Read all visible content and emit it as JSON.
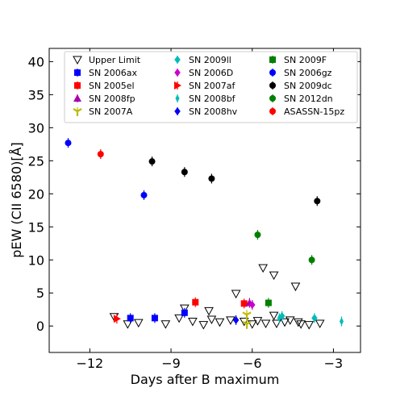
{
  "chart_data": {
    "type": "scatter",
    "xlabel": "Days after B maximum",
    "ylabel": "pEW (CII 6580)[Å]",
    "xlim": [
      -13.5,
      -2
    ],
    "ylim": [
      -4,
      42
    ],
    "xticks": [
      -12,
      -9,
      -6,
      -3
    ],
    "yticks": [
      0,
      5,
      10,
      15,
      20,
      25,
      30,
      35,
      40
    ],
    "grid": false,
    "legend_placement": "top-right",
    "series": [
      {
        "name": "Upper Limit",
        "color": "#000000",
        "marker": "triangle-down-open",
        "points": [
          [
            -11.1,
            1.4
          ],
          [
            -10.6,
            0.3
          ],
          [
            -10.2,
            0.5
          ],
          [
            -9.2,
            0.3
          ],
          [
            -8.7,
            1.2
          ],
          [
            -8.5,
            2.7
          ],
          [
            -8.2,
            0.7
          ],
          [
            -7.8,
            0.2
          ],
          [
            -7.6,
            2.3
          ],
          [
            -7.5,
            1.0
          ],
          [
            -7.2,
            0.6
          ],
          [
            -6.8,
            0.9
          ],
          [
            -6.6,
            4.9
          ],
          [
            -6.3,
            0.7
          ],
          [
            -6.0,
            0.3
          ],
          [
            -5.8,
            0.8
          ],
          [
            -5.6,
            8.8
          ],
          [
            -5.5,
            0.4
          ],
          [
            -5.2,
            7.7
          ],
          [
            -5.2,
            1.6
          ],
          [
            -5.1,
            0.4
          ],
          [
            -4.8,
            0.6
          ],
          [
            -4.6,
            0.9
          ],
          [
            -4.4,
            6.0
          ],
          [
            -4.3,
            0.6
          ],
          [
            -4.2,
            0.3
          ],
          [
            -3.9,
            0.2
          ],
          [
            -3.5,
            0.4
          ]
        ]
      },
      {
        "name": "SN 2006ax",
        "color": "#0000ff",
        "marker": "square",
        "points": [
          [
            -10.5,
            1.2
          ],
          [
            -9.6,
            1.2
          ],
          [
            -8.5,
            2.0
          ]
        ]
      },
      {
        "name": "SN 2005el",
        "color": "#ff0000",
        "marker": "square",
        "points": [
          [
            -8.1,
            3.6
          ],
          [
            -6.3,
            3.4
          ]
        ]
      },
      {
        "name": "SN 2008fp",
        "color": "#aa00aa",
        "marker": "triangle-up",
        "points": [
          [
            -6.1,
            3.5
          ]
        ]
      },
      {
        "name": "SN 2007A",
        "color": "#bbbb00",
        "marker": "tri-down",
        "points": [
          [
            -6.2,
            1.7
          ],
          [
            -6.2,
            0.3
          ]
        ]
      },
      {
        "name": "SN 2009ll",
        "color": "#00bbbb",
        "marker": "diamond",
        "points": [
          [
            -4.9,
            1.5
          ],
          [
            -3.7,
            1.2
          ]
        ]
      },
      {
        "name": "SN 2006D",
        "color": "#cc00cc",
        "marker": "diamond",
        "points": [
          [
            -6.0,
            3.2
          ]
        ]
      },
      {
        "name": "SN 2007af",
        "color": "#ff0000",
        "marker": "triangle-right",
        "points": [
          [
            -11.0,
            1.1
          ]
        ]
      },
      {
        "name": "SN 2008bf",
        "color": "#00bbbb",
        "marker": "diamond-thin",
        "points": [
          [
            -5.0,
            1.2
          ],
          [
            -2.7,
            0.7
          ]
        ]
      },
      {
        "name": "SN 2008hv",
        "color": "#0000ff",
        "marker": "diamond",
        "points": [
          [
            -6.6,
            0.9
          ]
        ]
      },
      {
        "name": "SN 2009F",
        "color": "#008000",
        "marker": "square",
        "points": [
          [
            -5.4,
            3.5
          ]
        ]
      },
      {
        "name": "SN 2006gz",
        "color": "#0000ff",
        "marker": "circle",
        "points": [
          [
            -12.8,
            27.7
          ],
          [
            -10.0,
            19.8
          ]
        ]
      },
      {
        "name": "SN 2009dc",
        "color": "#000000",
        "marker": "circle",
        "points": [
          [
            -9.7,
            24.9
          ],
          [
            -8.5,
            23.3
          ],
          [
            -7.5,
            22.3
          ],
          [
            -3.6,
            18.9
          ]
        ]
      },
      {
        "name": "SN 2012dn",
        "color": "#008000",
        "marker": "circle",
        "points": [
          [
            -5.8,
            13.8
          ],
          [
            -3.8,
            10.0
          ]
        ]
      },
      {
        "name": "ASASSN-15pz",
        "color": "#ff0000",
        "marker": "circle",
        "points": [
          [
            -11.6,
            26.0
          ]
        ]
      }
    ]
  }
}
